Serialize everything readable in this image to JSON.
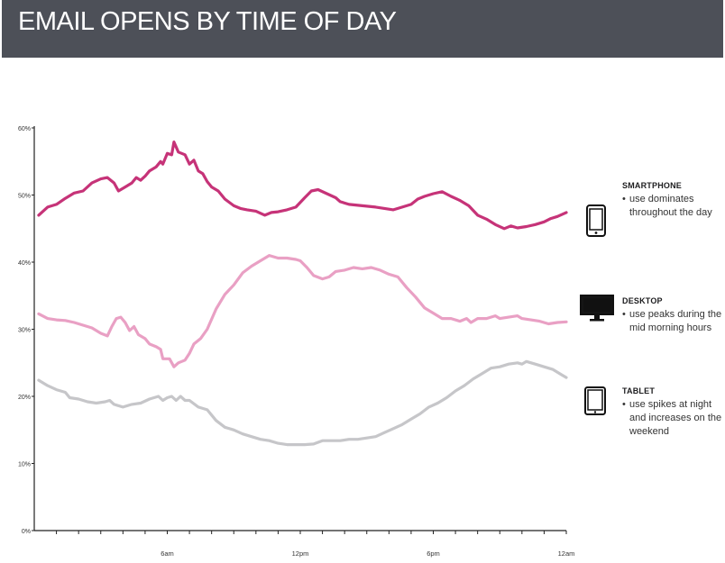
{
  "header": {
    "title": "EMAIL OPENS BY TIME OF DAY"
  },
  "colors": {
    "header_bg": "#4d5058",
    "smartphone": "#c63378",
    "desktop": "#e9a0c4",
    "tablet": "#c6c6c9"
  },
  "legend": [
    {
      "key": "smartphone",
      "title": "SMARTPHONE",
      "bullet": "•",
      "desc": "use dominates throughout the day",
      "icon": "smartphone-icon"
    },
    {
      "key": "desktop",
      "title": "DESKTOP",
      "bullet": "•",
      "desc": "use peaks during the mid morning hours",
      "icon": "desktop-icon"
    },
    {
      "key": "tablet",
      "title": "TABLET",
      "bullet": "•",
      "desc": "use spikes at night and increases on the weekend",
      "icon": "tablet-icon"
    }
  ],
  "chart_data": {
    "type": "line",
    "title": "EMAIL OPENS BY TIME OF DAY",
    "xlabel": "",
    "ylabel": "",
    "x_unit": "hour of day",
    "xlim": [
      0,
      24
    ],
    "ylim": [
      0,
      60
    ],
    "y_ticks": [
      {
        "value": 0,
        "label": "0%"
      },
      {
        "value": 10,
        "label": "10%"
      },
      {
        "value": 20,
        "label": "20%"
      },
      {
        "value": 30,
        "label": "30%"
      },
      {
        "value": 40,
        "label": "40%"
      },
      {
        "value": 50,
        "label": "50%"
      },
      {
        "value": 60,
        "label": "60%"
      }
    ],
    "x_ticks": [
      {
        "value": 6,
        "label": "6am"
      },
      {
        "value": 12,
        "label": "12pm"
      },
      {
        "value": 18,
        "label": "6pm"
      },
      {
        "value": 24,
        "label": "12am"
      }
    ],
    "grid": false,
    "series": [
      {
        "name": "SMARTPHONE",
        "color": "#c63378",
        "points": [
          [
            0.2,
            47.0
          ],
          [
            0.6,
            48.2
          ],
          [
            1.0,
            48.6
          ],
          [
            1.4,
            49.5
          ],
          [
            1.8,
            50.3
          ],
          [
            2.2,
            50.6
          ],
          [
            2.6,
            51.8
          ],
          [
            3.0,
            52.4
          ],
          [
            3.3,
            52.6
          ],
          [
            3.6,
            51.8
          ],
          [
            3.8,
            50.6
          ],
          [
            4.1,
            51.2
          ],
          [
            4.4,
            51.8
          ],
          [
            4.6,
            52.6
          ],
          [
            4.8,
            52.2
          ],
          [
            5.0,
            52.8
          ],
          [
            5.2,
            53.6
          ],
          [
            5.5,
            54.2
          ],
          [
            5.7,
            55.0
          ],
          [
            5.8,
            54.6
          ],
          [
            6.0,
            56.2
          ],
          [
            6.2,
            56.0
          ],
          [
            6.3,
            57.9
          ],
          [
            6.5,
            56.4
          ],
          [
            6.8,
            56.0
          ],
          [
            7.0,
            54.6
          ],
          [
            7.2,
            55.2
          ],
          [
            7.4,
            53.6
          ],
          [
            7.6,
            53.2
          ],
          [
            7.8,
            52.0
          ],
          [
            8.0,
            51.2
          ],
          [
            8.3,
            50.6
          ],
          [
            8.6,
            49.4
          ],
          [
            9.0,
            48.4
          ],
          [
            9.3,
            48.0
          ],
          [
            9.6,
            47.8
          ],
          [
            10.0,
            47.6
          ],
          [
            10.4,
            47.0
          ],
          [
            10.7,
            47.4
          ],
          [
            11.0,
            47.5
          ],
          [
            11.4,
            47.8
          ],
          [
            11.8,
            48.2
          ],
          [
            12.2,
            49.6
          ],
          [
            12.5,
            50.6
          ],
          [
            12.8,
            50.8
          ],
          [
            13.2,
            50.2
          ],
          [
            13.6,
            49.6
          ],
          [
            13.8,
            49.0
          ],
          [
            14.2,
            48.6
          ],
          [
            14.8,
            48.4
          ],
          [
            15.4,
            48.2
          ],
          [
            15.8,
            48.0
          ],
          [
            16.2,
            47.8
          ],
          [
            16.6,
            48.2
          ],
          [
            17.0,
            48.6
          ],
          [
            17.3,
            49.4
          ],
          [
            17.6,
            49.8
          ],
          [
            18.0,
            50.2
          ],
          [
            18.4,
            50.5
          ],
          [
            18.8,
            49.8
          ],
          [
            19.2,
            49.2
          ],
          [
            19.6,
            48.4
          ],
          [
            20.0,
            47.0
          ],
          [
            20.4,
            46.4
          ],
          [
            20.8,
            45.6
          ],
          [
            21.2,
            45.0
          ],
          [
            21.5,
            45.4
          ],
          [
            21.8,
            45.1
          ],
          [
            22.2,
            45.3
          ],
          [
            22.6,
            45.6
          ],
          [
            23.0,
            46.0
          ],
          [
            23.3,
            46.5
          ],
          [
            23.6,
            46.8
          ],
          [
            24.0,
            47.4
          ]
        ]
      },
      {
        "name": "DESKTOP",
        "color": "#e9a0c4",
        "points": [
          [
            0.2,
            32.3
          ],
          [
            0.6,
            31.6
          ],
          [
            1.0,
            31.4
          ],
          [
            1.4,
            31.3
          ],
          [
            1.8,
            31.0
          ],
          [
            2.2,
            30.6
          ],
          [
            2.6,
            30.2
          ],
          [
            3.0,
            29.4
          ],
          [
            3.3,
            29.0
          ],
          [
            3.5,
            30.4
          ],
          [
            3.7,
            31.6
          ],
          [
            3.9,
            31.8
          ],
          [
            4.1,
            31.0
          ],
          [
            4.3,
            29.8
          ],
          [
            4.5,
            30.4
          ],
          [
            4.7,
            29.2
          ],
          [
            5.0,
            28.6
          ],
          [
            5.2,
            27.8
          ],
          [
            5.5,
            27.4
          ],
          [
            5.7,
            27.0
          ],
          [
            5.8,
            25.6
          ],
          [
            6.1,
            25.6
          ],
          [
            6.3,
            24.4
          ],
          [
            6.5,
            25.0
          ],
          [
            6.8,
            25.4
          ],
          [
            7.0,
            26.4
          ],
          [
            7.2,
            27.8
          ],
          [
            7.5,
            28.6
          ],
          [
            7.8,
            30.0
          ],
          [
            8.2,
            33.0
          ],
          [
            8.6,
            35.2
          ],
          [
            9.0,
            36.6
          ],
          [
            9.4,
            38.4
          ],
          [
            9.8,
            39.4
          ],
          [
            10.2,
            40.2
          ],
          [
            10.6,
            41.0
          ],
          [
            11.0,
            40.6
          ],
          [
            11.4,
            40.6
          ],
          [
            11.8,
            40.4
          ],
          [
            12.0,
            40.2
          ],
          [
            12.3,
            39.2
          ],
          [
            12.6,
            38.0
          ],
          [
            13.0,
            37.5
          ],
          [
            13.3,
            37.8
          ],
          [
            13.6,
            38.6
          ],
          [
            14.0,
            38.8
          ],
          [
            14.4,
            39.2
          ],
          [
            14.8,
            39.0
          ],
          [
            15.2,
            39.2
          ],
          [
            15.6,
            38.8
          ],
          [
            16.0,
            38.2
          ],
          [
            16.4,
            37.8
          ],
          [
            16.8,
            36.2
          ],
          [
            17.2,
            34.8
          ],
          [
            17.6,
            33.2
          ],
          [
            18.0,
            32.4
          ],
          [
            18.4,
            31.6
          ],
          [
            18.8,
            31.6
          ],
          [
            19.2,
            31.2
          ],
          [
            19.5,
            31.6
          ],
          [
            19.7,
            31.0
          ],
          [
            20.0,
            31.6
          ],
          [
            20.4,
            31.6
          ],
          [
            20.8,
            32.0
          ],
          [
            21.0,
            31.6
          ],
          [
            21.4,
            31.8
          ],
          [
            21.8,
            32.0
          ],
          [
            22.0,
            31.6
          ],
          [
            22.4,
            31.4
          ],
          [
            22.8,
            31.2
          ],
          [
            23.2,
            30.8
          ],
          [
            23.6,
            31.0
          ],
          [
            24.0,
            31.1
          ]
        ]
      },
      {
        "name": "TABLET",
        "color": "#c6c6c9",
        "points": [
          [
            0.2,
            22.4
          ],
          [
            0.6,
            21.6
          ],
          [
            1.0,
            21.0
          ],
          [
            1.4,
            20.6
          ],
          [
            1.6,
            19.8
          ],
          [
            2.0,
            19.6
          ],
          [
            2.4,
            19.2
          ],
          [
            2.8,
            19.0
          ],
          [
            3.2,
            19.2
          ],
          [
            3.4,
            19.4
          ],
          [
            3.6,
            18.8
          ],
          [
            4.0,
            18.4
          ],
          [
            4.4,
            18.8
          ],
          [
            4.8,
            19.0
          ],
          [
            5.2,
            19.6
          ],
          [
            5.6,
            20.0
          ],
          [
            5.8,
            19.4
          ],
          [
            6.0,
            19.8
          ],
          [
            6.2,
            20.0
          ],
          [
            6.4,
            19.4
          ],
          [
            6.6,
            20.0
          ],
          [
            6.8,
            19.4
          ],
          [
            7.0,
            19.4
          ],
          [
            7.4,
            18.4
          ],
          [
            7.8,
            18.0
          ],
          [
            8.2,
            16.4
          ],
          [
            8.6,
            15.4
          ],
          [
            9.0,
            15.0
          ],
          [
            9.4,
            14.4
          ],
          [
            9.8,
            14.0
          ],
          [
            10.2,
            13.6
          ],
          [
            10.6,
            13.4
          ],
          [
            11.0,
            13.0
          ],
          [
            11.4,
            12.8
          ],
          [
            11.8,
            12.8
          ],
          [
            12.2,
            12.8
          ],
          [
            12.6,
            12.9
          ],
          [
            13.0,
            13.4
          ],
          [
            13.4,
            13.4
          ],
          [
            13.8,
            13.4
          ],
          [
            14.2,
            13.6
          ],
          [
            14.6,
            13.6
          ],
          [
            15.0,
            13.8
          ],
          [
            15.4,
            14.0
          ],
          [
            15.8,
            14.6
          ],
          [
            16.2,
            15.2
          ],
          [
            16.6,
            15.8
          ],
          [
            17.0,
            16.6
          ],
          [
            17.4,
            17.4
          ],
          [
            17.8,
            18.4
          ],
          [
            18.2,
            19.0
          ],
          [
            18.6,
            19.8
          ],
          [
            19.0,
            20.8
          ],
          [
            19.4,
            21.6
          ],
          [
            19.8,
            22.6
          ],
          [
            20.2,
            23.4
          ],
          [
            20.6,
            24.2
          ],
          [
            21.0,
            24.4
          ],
          [
            21.4,
            24.8
          ],
          [
            21.8,
            25.0
          ],
          [
            22.0,
            24.8
          ],
          [
            22.2,
            25.2
          ],
          [
            22.6,
            24.8
          ],
          [
            23.0,
            24.4
          ],
          [
            23.4,
            24.0
          ],
          [
            23.8,
            23.2
          ],
          [
            24.0,
            22.8
          ]
        ]
      }
    ]
  }
}
